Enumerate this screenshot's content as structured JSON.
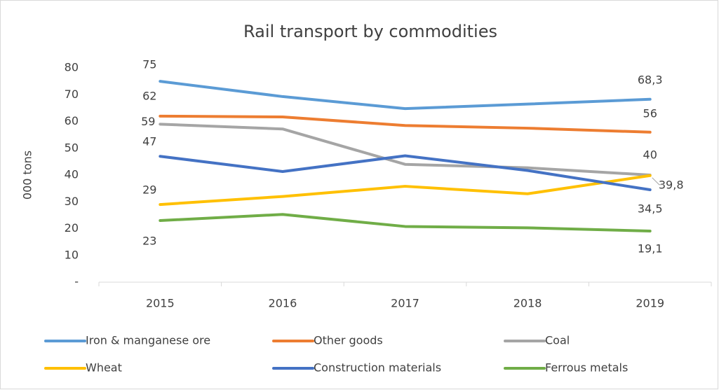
{
  "chart_data": {
    "type": "line",
    "title": "Rail transport by commodities",
    "y_label": "000 tons",
    "categories": [
      "2015",
      "2016",
      "2017",
      "2018",
      "2019"
    ],
    "ylim": [
      0,
      80
    ],
    "yticks": [
      {
        "value": 0,
        "label": "-"
      },
      10,
      20,
      30,
      40,
      50,
      60,
      70,
      80
    ],
    "grid": false,
    "legend": "bottom",
    "series": [
      {
        "name": "Iron & manganese ore",
        "color": "#5b9bd5",
        "values": [
          75,
          69.3,
          64.8,
          66.5,
          68.3
        ],
        "value_labels": [
          "75",
          null,
          null,
          null,
          "68,3"
        ]
      },
      {
        "name": "Other goods",
        "color": "#ed7d31",
        "values": [
          62,
          61.7,
          58.5,
          57.5,
          56
        ],
        "value_labels": [
          "62",
          null,
          null,
          null,
          "56"
        ]
      },
      {
        "name": "Coal",
        "color": "#a5a5a5",
        "values": [
          59,
          57.2,
          44,
          42.7,
          40
        ],
        "value_labels": [
          "59",
          null,
          null,
          null,
          "40"
        ]
      },
      {
        "name": "Wheat",
        "color": "#ffc000",
        "values": [
          29,
          32,
          35.8,
          33,
          39.8
        ],
        "value_labels": [
          "29",
          null,
          null,
          null,
          "39,8"
        ]
      },
      {
        "name": "Construction materials",
        "color": "#4472c4",
        "values": [
          47,
          41.3,
          47.2,
          41.7,
          34.5
        ],
        "value_labels": [
          "47",
          null,
          null,
          null,
          "34,5"
        ]
      },
      {
        "name": "Ferrous metals",
        "color": "#70ad47",
        "values": [
          23,
          25.3,
          20.8,
          20.3,
          19.1
        ],
        "value_labels": [
          "23",
          null,
          null,
          null,
          "19,1"
        ]
      }
    ]
  }
}
